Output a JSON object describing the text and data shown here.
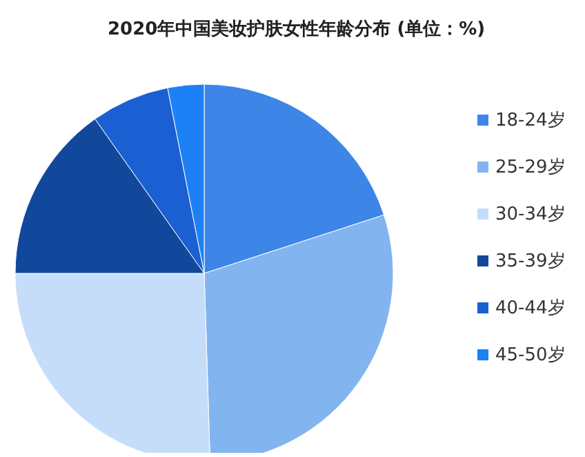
{
  "chart_data": {
    "type": "pie",
    "title": "2020年中国美妆护肤女性年龄分布 (单位：%)",
    "categories": [
      "18-24岁",
      "25-29岁",
      "30-34岁",
      "35-39岁",
      "40-44岁",
      "45-50岁"
    ],
    "values": [
      20,
      29.5,
      25.5,
      15.2,
      6.7,
      3.1
    ],
    "colors": [
      "#3d86e8",
      "#82b4f0",
      "#c6ddfa",
      "#11489c",
      "#1a60d2",
      "#1e80f5"
    ],
    "legend": "right"
  }
}
